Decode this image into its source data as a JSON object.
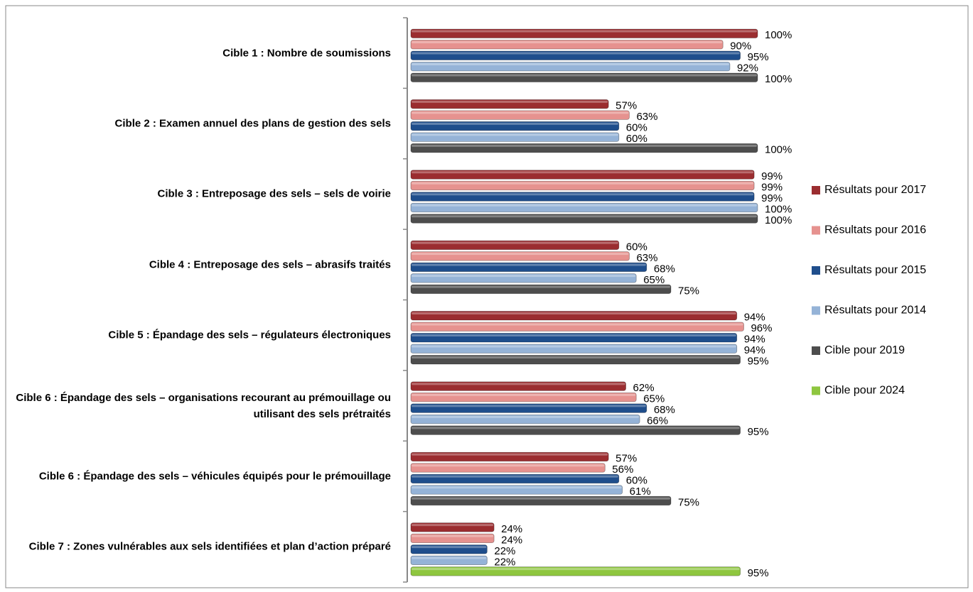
{
  "chart_data": {
    "type": "bar",
    "orientation": "horizontal",
    "categories": [
      "Cible 1 : Nombre de soumissions",
      "Cible 2 : Examen annuel des plans de gestion des sels",
      "Cible 3 : Entreposage des sels – sels de voirie",
      "Cible 4 : Entreposage des sels – abrasifs traités",
      "Cible 5 : Épandage des sels – régulateurs électroniques",
      "Cible 6 : Épandage des sels – organisations recourant au prémouillage ou utilisant des sels prétraités",
      "Cible 6 : Épandage des sels – véhicules équipés pour le prémouillage",
      "Cible 7 : Zones vulnérables aux sels identifiées et plan d’action préparé"
    ],
    "series": [
      {
        "name": "Résultats pour 2017",
        "color": "#9b2d30",
        "values": [
          100,
          57,
          99,
          60,
          94,
          62,
          57,
          24
        ],
        "value_labels": [
          "100%",
          "57%",
          "99%",
          "60%",
          "94%",
          "62%",
          "57%",
          "24%"
        ]
      },
      {
        "name": "Résultats pour 2016",
        "color": "#e6928f",
        "values": [
          90,
          63,
          99,
          63,
          96,
          65,
          56,
          24
        ],
        "value_labels": [
          "90%",
          "63%",
          "99%",
          "63%",
          "96%",
          "65%",
          "56%",
          "24%"
        ]
      },
      {
        "name": "Résultats pour 2015",
        "color": "#1f4e8c",
        "values": [
          95,
          60,
          99,
          68,
          94,
          68,
          60,
          22
        ],
        "value_labels": [
          "95%",
          "60%",
          "99%",
          "68%",
          "94%",
          "68%",
          "60%",
          "22%"
        ]
      },
      {
        "name": "Résultats pour 2014",
        "color": "#95b3d7",
        "values": [
          92,
          60,
          100,
          65,
          94,
          66,
          61,
          22
        ],
        "value_labels": [
          "92%",
          "60%",
          "100%",
          "65%",
          "94%",
          "66%",
          "61%",
          "22%"
        ]
      },
      {
        "name": "Cible pour 2019",
        "color": "#4d4d4d",
        "values": [
          100,
          100,
          100,
          75,
          95,
          95,
          75,
          null
        ],
        "value_labels": [
          "100%",
          "100%",
          "100%",
          "75%",
          "95%",
          "95%",
          "75%",
          null
        ]
      },
      {
        "name": "Cible pour 2024",
        "color": "#8ec63f",
        "values": [
          null,
          null,
          null,
          null,
          null,
          null,
          null,
          95
        ],
        "value_labels": [
          null,
          null,
          null,
          null,
          null,
          null,
          null,
          "95%"
        ]
      }
    ],
    "xlim": [
      0,
      100
    ],
    "legend": "right"
  }
}
